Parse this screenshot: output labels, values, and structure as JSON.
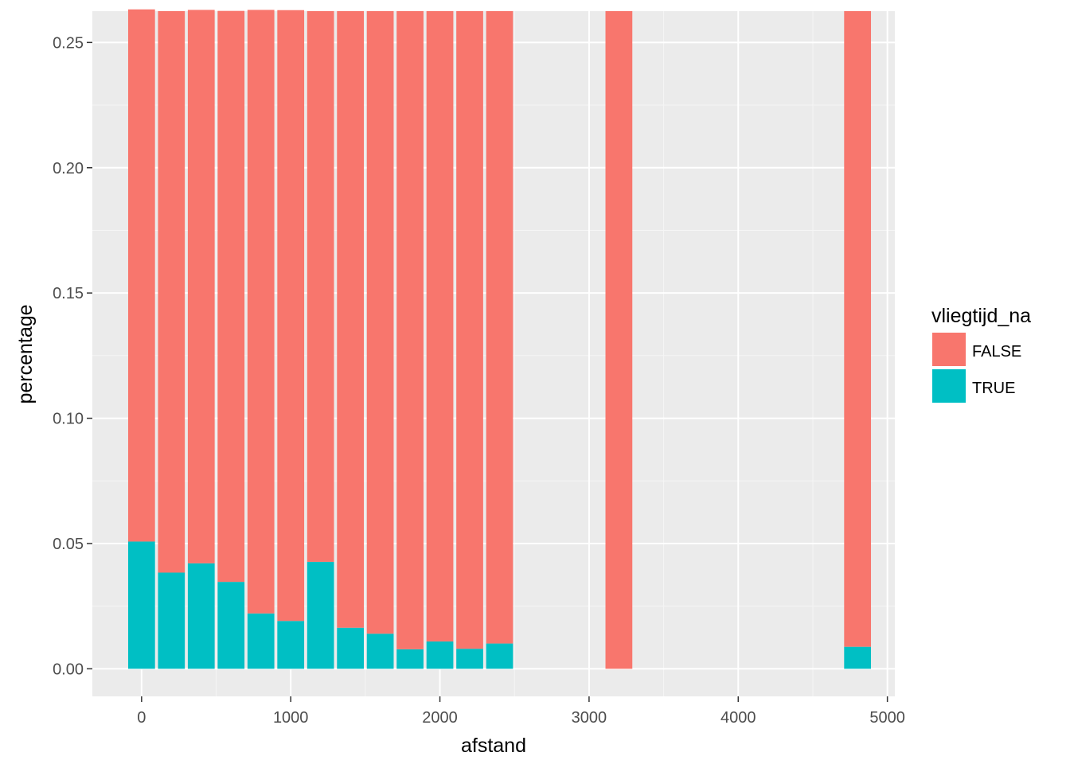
{
  "chart_data": {
    "type": "bar",
    "stacked": true,
    "xlabel": "afstand",
    "ylabel": "percentage",
    "xlim": [
      -330,
      5050
    ],
    "ylim": [
      -0.011,
      0.2625
    ],
    "xticks": [
      0,
      1000,
      2000,
      3000,
      4000,
      5000
    ],
    "xtick_labels": [
      "0",
      "1000",
      "2000",
      "3000",
      "4000",
      "5000"
    ],
    "yticks": [
      0.0,
      0.05,
      0.1,
      0.15,
      0.2,
      0.25
    ],
    "ytick_labels": [
      "0.00",
      "0.05",
      "0.10",
      "0.15",
      "0.20",
      "0.25"
    ],
    "bin_width": 200,
    "x": [
      0,
      200,
      400,
      600,
      800,
      1000,
      1200,
      1400,
      1600,
      1800,
      2000,
      2200,
      2400,
      3200,
      4800
    ],
    "series": [
      {
        "name": "FALSE",
        "color": "#F8766D",
        "values": [
          0.2124,
          0.2241,
          0.2209,
          0.2279,
          0.2409,
          0.2438,
          0.2198,
          0.2461,
          0.2485,
          0.2547,
          0.2516,
          0.2545,
          0.2524,
          0.2625,
          0.2537
        ]
      },
      {
        "name": "TRUE",
        "color": "#00BFC4",
        "values": [
          0.0508,
          0.0384,
          0.0421,
          0.0347,
          0.0221,
          0.0191,
          0.0427,
          0.0164,
          0.014,
          0.0078,
          0.0109,
          0.008,
          0.0101,
          0.0,
          0.0088
        ]
      }
    ],
    "grid": true,
    "legend": {
      "title": "vliegtijd_na",
      "placement": "right",
      "entries": [
        "FALSE",
        "TRUE"
      ]
    }
  }
}
